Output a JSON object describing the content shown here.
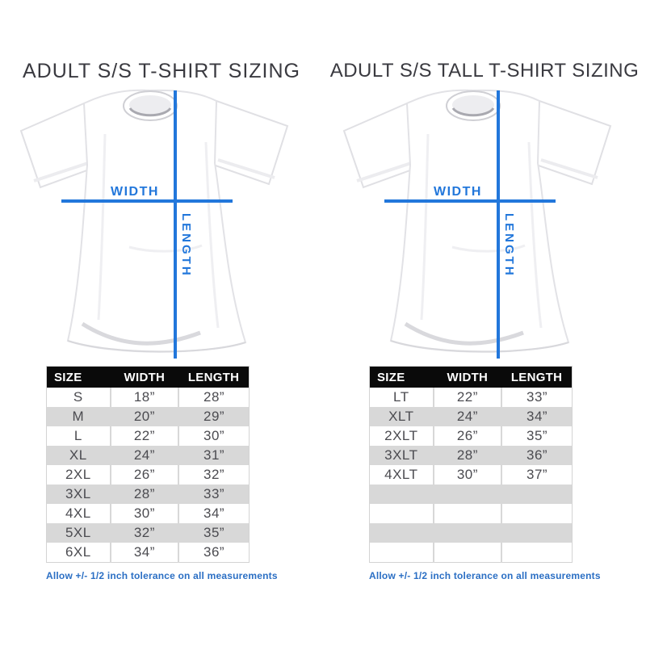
{
  "colors": {
    "accent_blue": "#2277db",
    "footnote_blue": "#2b6fc4",
    "table_header_bg": "#0a0a0a",
    "table_header_text": "#ffffff",
    "row_alt_gray": "#d8d8d8",
    "cell_text": "#4b4b50",
    "title_text": "#3a3a40"
  },
  "panels": [
    {
      "title": "ADULT S/S T-SHIRT SIZING",
      "diagram": {
        "width_label": "WIDTH",
        "length_label": "LENGTH"
      },
      "table": {
        "headers": [
          "SIZE",
          "WIDTH",
          "LENGTH"
        ],
        "rows": [
          [
            "S",
            "18”",
            "28”"
          ],
          [
            "M",
            "20”",
            "29”"
          ],
          [
            "L",
            "22”",
            "30”"
          ],
          [
            "XL",
            "24”",
            "31”"
          ],
          [
            "2XL",
            "26”",
            "32”"
          ],
          [
            "3XL",
            "28”",
            "33”"
          ],
          [
            "4XL",
            "30”",
            "34”"
          ],
          [
            "5XL",
            "32”",
            "35”"
          ],
          [
            "6XL",
            "34”",
            "36”"
          ]
        ]
      },
      "footnote": "Allow +/- 1/2 inch tolerance on all measurements"
    },
    {
      "title": "ADULT S/S TALL T-SHIRT SIZING",
      "diagram": {
        "width_label": "WIDTH",
        "length_label": "LENGTH"
      },
      "table": {
        "headers": [
          "SIZE",
          "WIDTH",
          "LENGTH"
        ],
        "rows": [
          [
            "LT",
            "22”",
            "33”"
          ],
          [
            "XLT",
            "24”",
            "34”"
          ],
          [
            "2XLT",
            "26”",
            "35”"
          ],
          [
            "3XLT",
            "28”",
            "36”"
          ],
          [
            "4XLT",
            "30”",
            "37”"
          ],
          [
            "",
            "",
            ""
          ],
          [
            "",
            "",
            ""
          ],
          [
            "",
            "",
            ""
          ],
          [
            "",
            "",
            ""
          ]
        ]
      },
      "footnote": "Allow +/- 1/2 inch tolerance on all measurements"
    }
  ]
}
